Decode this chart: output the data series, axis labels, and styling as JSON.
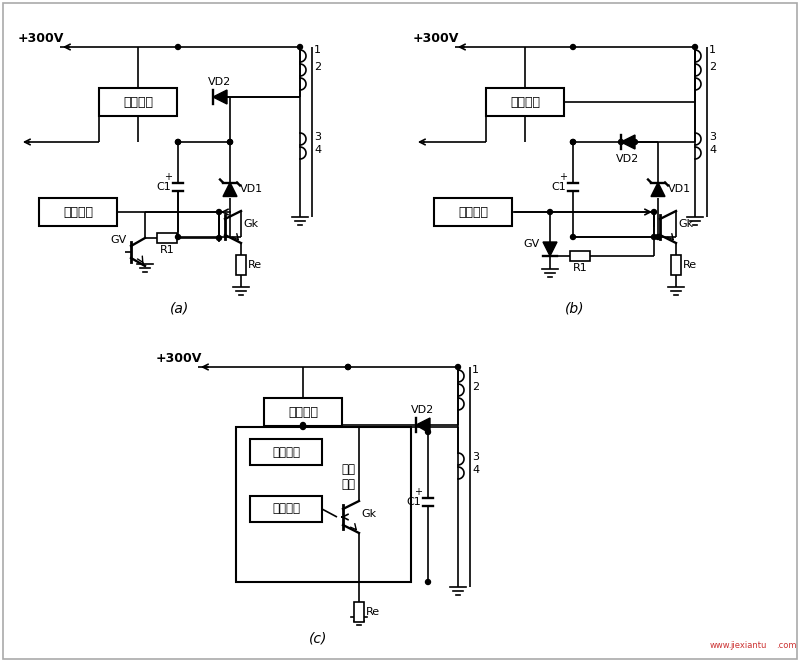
{
  "bg_color": "#ffffff",
  "line_color": "#000000",
  "label_a": "(a)",
  "label_b": "(b)",
  "label_c": "(c)",
  "plus300v": "+300V",
  "qidong": "启动电路",
  "zhendang": "振荚电路",
  "baohu": "保护电路",
  "houmou1": "厉膜",
  "houmou2": "电路",
  "vd1": "VD1",
  "vd2": "VD2",
  "gk": "Gk",
  "gv": "GV",
  "c1": "C1",
  "r1": "R1",
  "re": "Re",
  "border_color": "#999999",
  "watermark1": "www.",
  "watermark2": "jiexiantu",
  "watermark3": ".com"
}
